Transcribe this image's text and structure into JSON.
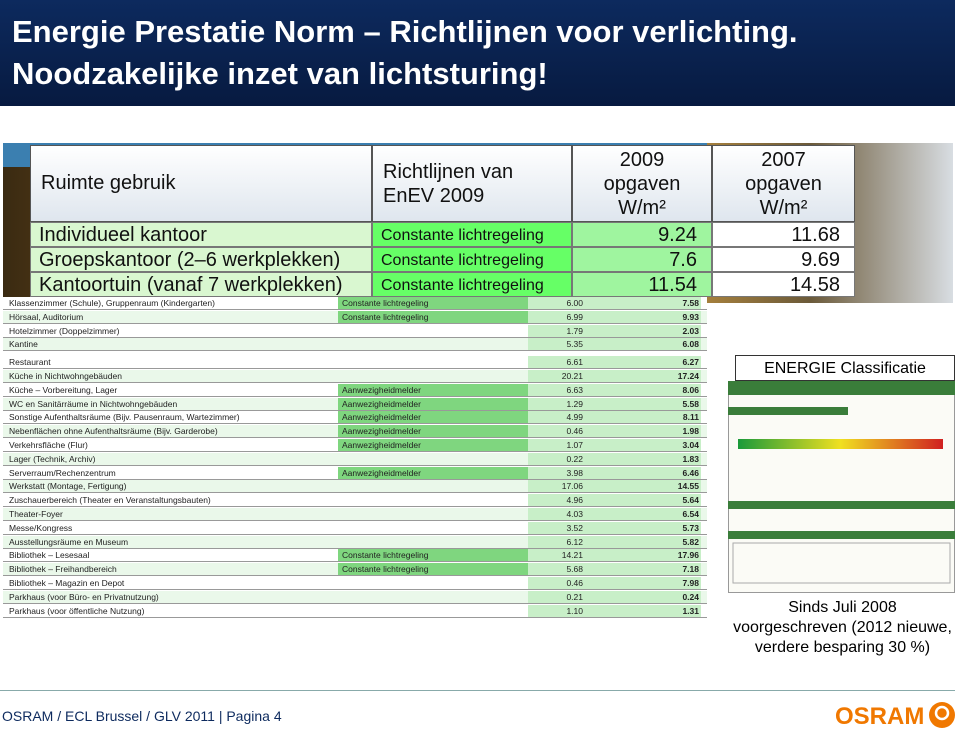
{
  "header": {
    "title_lines": [
      "Energie Prestatie Norm – Richtlijnen voor verlichting.",
      "Noodzakelijke inzet van lichtsturing!"
    ]
  },
  "overlay_table": {
    "columns": {
      "room": "Ruimte gebruik",
      "control": [
        "Richtlijnen van",
        "EnEV 2009"
      ],
      "v2009": [
        "2009",
        "opgaven",
        "W/m²"
      ],
      "v2007": [
        "2007",
        "opgaven",
        "W/m²"
      ]
    },
    "rows": [
      {
        "room": "Individueel kantoor",
        "control": "Constante lichtregeling",
        "v2009": "9.24",
        "v2007": "11.68"
      },
      {
        "room": "Groepskantoor (2–6 werkplekken)",
        "control": "Constante lichtregeling",
        "v2009": "7.6",
        "v2007": "9.69"
      },
      {
        "room": "Kantoortuin (vanaf 7 werkplekken)",
        "control": "Constante lichtregeling",
        "v2009": "11.54",
        "v2007": "14.58"
      }
    ]
  },
  "table": {
    "rows": [
      {
        "room": "Klassenzimmer (Schule), Gruppenraum (Kindergarten)",
        "control": "Constante lichtregeling",
        "v2009": "6.00",
        "v2007": "7.58"
      },
      {
        "room": "Hörsaal, Auditorium",
        "control": "Constante lichtregeling",
        "v2009": "6.99",
        "v2007": "9.93"
      },
      {
        "room": "Hotelzimmer (Doppelzimmer)",
        "v2009": "1.79",
        "v2007": "2.03"
      },
      {
        "room": "Kantine",
        "v2009": "5.35",
        "v2007": "6.08"
      },
      {
        "room": "Restaurant",
        "v2009": "6.61",
        "v2007": "6.27"
      },
      {
        "room": "Küche in Nichtwohngebäuden",
        "v2009": "20.21",
        "v2007": "17.24"
      },
      {
        "room": "Küche – Vorbereitung, Lager",
        "control": "Aanwezigheidmelder",
        "v2009": "6.63",
        "v2007": "8.06"
      },
      {
        "room": "WC en Sanitärräume in Nichtwohngebäuden",
        "control": "Aanwezigheidmelder",
        "v2009": "1.29",
        "v2007": "5.58"
      },
      {
        "room": "Sonstige Aufenthaltsräume (Bijv. Pausenraum, Wartezimmer)",
        "control": "Aanwezigheidmelder",
        "v2009": "4.99",
        "v2007": "8.11"
      },
      {
        "room": "Nebenflächen ohne Aufenthaltsräume (Bijv. Garderobe)",
        "control": "Aanwezigheidmelder",
        "v2009": "0.46",
        "v2007": "1.98"
      },
      {
        "room": "Verkehrsfläche (Flur)",
        "control": "Aanwezigheidmelder",
        "v2009": "1.07",
        "v2007": "3.04"
      },
      {
        "room": "Lager (Technik, Archiv)",
        "v2009": "0.22",
        "v2007": "1.83"
      },
      {
        "room": "Serverraum/Rechenzentrum",
        "control": "Aanwezigheidmelder",
        "v2009": "3.98",
        "v2007": "6.46"
      },
      {
        "room": "Werkstatt (Montage, Fertigung)",
        "v2009": "17.06",
        "v2007": "14.55"
      },
      {
        "room": "Zuschauerbereich (Theater en Veranstaltungsbauten)",
        "v2009": "4.96",
        "v2007": "5.64"
      },
      {
        "room": "Theater-Foyer",
        "v2009": "4.03",
        "v2007": "6.54"
      },
      {
        "room": "Messe/Kongress",
        "v2009": "3.52",
        "v2007": "5.73"
      },
      {
        "room": "Ausstellungsräume en Museum",
        "v2009": "6.12",
        "v2007": "5.82"
      },
      {
        "room": "Bibliothek – Lesesaal",
        "control": "Constante lichtregeling",
        "v2009": "14.21",
        "v2007": "17.96"
      },
      {
        "room": "Bibliothek – Freihandbereich",
        "control": "Constante lichtregeling",
        "v2009": "5.68",
        "v2007": "7.18"
      },
      {
        "room": "Bibliothek – Magazin en Depot",
        "v2009": "0.46",
        "v2007": "7.98"
      },
      {
        "room": "Parkhaus (voor Büro- en Privatnutzung)",
        "v2009": "0.21",
        "v2007": "0.24"
      },
      {
        "room": "Parkhaus (voor öffentliche Nutzung)",
        "v2009": "1.10",
        "v2007": "1.31"
      }
    ]
  },
  "side": {
    "label": "ENERGIE Classificatie",
    "note": "Sinds Juli 2008 voorgeschreven (2012 nieuwe, verdere besparing 30 %)"
  },
  "footer": {
    "text": "OSRAM / ECL Brussel / GLV 2011 | Pagina 4",
    "logo": "OSRAM"
  }
}
